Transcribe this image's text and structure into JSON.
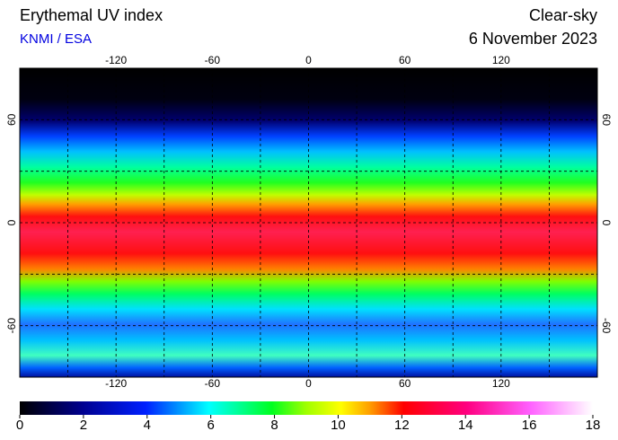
{
  "header": {
    "title": "Erythemal UV index",
    "source": "KNMI / ESA",
    "mode": "Clear-sky",
    "date": "6 November 2023"
  },
  "map": {
    "lon_range": [
      -180,
      180
    ],
    "lat_range": [
      -90,
      90
    ],
    "lon_ticks": [
      -120,
      -60,
      0,
      60,
      120
    ],
    "lat_ticks": [
      60,
      0,
      -60
    ],
    "grid_step": 30
  },
  "colorbar": {
    "range": [
      0,
      18
    ],
    "ticks": [
      0,
      2,
      4,
      6,
      8,
      10,
      12,
      14,
      16,
      18
    ]
  }
}
